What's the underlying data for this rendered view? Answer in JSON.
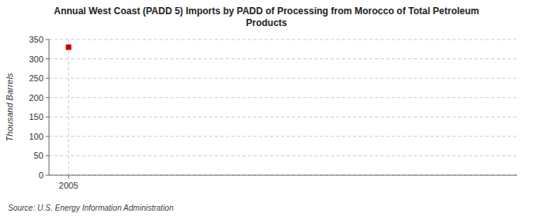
{
  "chart_data": {
    "type": "scatter",
    "title": "Annual West Coast (PADD 5) Imports by PADD of Processing from Morocco of Total Petroleum\nProducts",
    "y_label": "Thousand Barrels",
    "source": "Source: U.S. Energy Information Administration",
    "x": [
      2005
    ],
    "values": [
      330
    ],
    "color": "#cc0000",
    "marker": "square",
    "xlim": [
      2004.3,
      2021
    ],
    "ylim": [
      0,
      350
    ],
    "xticks": [
      2005
    ],
    "yticks": [
      0,
      50,
      100,
      150,
      200,
      250,
      300,
      350
    ],
    "grid": true
  }
}
